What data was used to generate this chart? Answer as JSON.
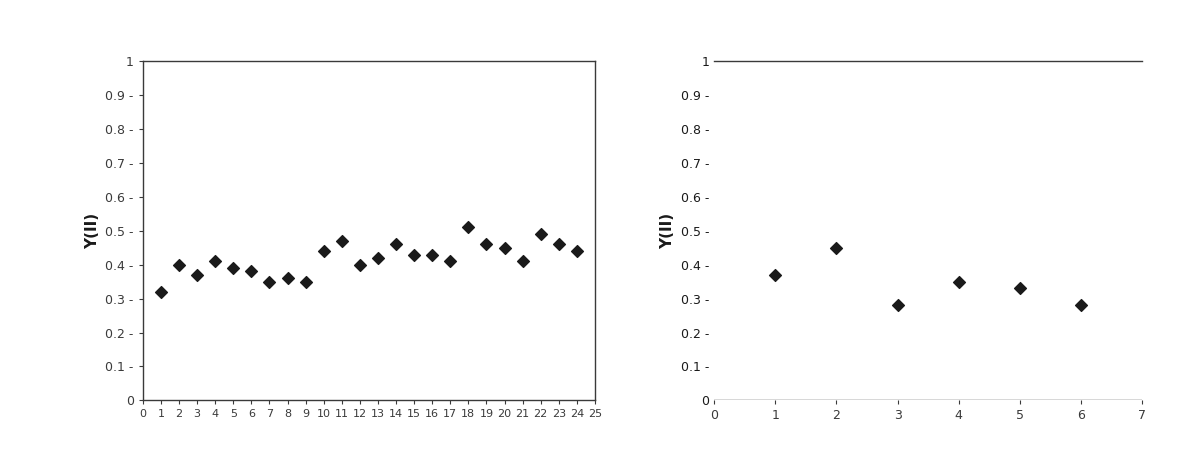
{
  "chart1": {
    "x": [
      1,
      2,
      3,
      4,
      5,
      6,
      7,
      8,
      9,
      10,
      11,
      12,
      13,
      14,
      15,
      16,
      17,
      18,
      19,
      20,
      21,
      22,
      23,
      24
    ],
    "y": [
      0.32,
      0.4,
      0.37,
      0.41,
      0.39,
      0.38,
      0.35,
      0.36,
      0.35,
      0.44,
      0.47,
      0.4,
      0.42,
      0.46,
      0.43,
      0.43,
      0.41,
      0.51,
      0.46,
      0.45,
      0.41,
      0.49,
      0.46,
      0.44
    ],
    "xlim": [
      0,
      25
    ],
    "ylim": [
      0,
      1
    ],
    "xticks": [
      0,
      1,
      2,
      3,
      4,
      5,
      6,
      7,
      8,
      9,
      10,
      11,
      12,
      13,
      14,
      15,
      16,
      17,
      18,
      19,
      20,
      21,
      22,
      23,
      24,
      25
    ],
    "ytick_vals": [
      0,
      0.1,
      0.2,
      0.3,
      0.4,
      0.5,
      0.6,
      0.7,
      0.8,
      0.9,
      1
    ],
    "ytick_labels": [
      "0",
      "0.1 -",
      "0.2 -",
      "0.3 -",
      "0.4 -",
      "0.5 -",
      "0.6 -",
      "0.7 -",
      "0.8 -",
      "0.9 -",
      "1"
    ],
    "ylabel": "Y(II)",
    "has_box": true
  },
  "chart2": {
    "x": [
      1,
      2,
      3,
      4,
      5,
      6
    ],
    "y": [
      0.37,
      0.45,
      0.28,
      0.35,
      0.33,
      0.28
    ],
    "xlim": [
      0,
      7
    ],
    "ylim": [
      0,
      1
    ],
    "xticks": [
      0,
      1,
      2,
      3,
      4,
      5,
      6,
      7
    ],
    "ytick_vals": [
      0,
      0.1,
      0.2,
      0.3,
      0.4,
      0.5,
      0.6,
      0.7,
      0.8,
      0.9,
      1
    ],
    "ytick_labels": [
      "0",
      "0.1 -",
      "0.2 -",
      "0.3 -",
      "0.4 -",
      "0.5 -",
      "0.6 -",
      "0.7 -",
      "0.8 -",
      "0.9 -",
      "1"
    ],
    "ylabel": "Y(II)",
    "has_box": false
  },
  "marker": "D",
  "marker_color": "#1a1a1a",
  "marker_size": 6,
  "bg_color": "#ffffff",
  "spine_color": "#3a3a3a",
  "tick_color": "#3a3a3a",
  "label_color": "#1a1a1a",
  "tick_fontsize": 9,
  "ylabel_fontsize": 11
}
